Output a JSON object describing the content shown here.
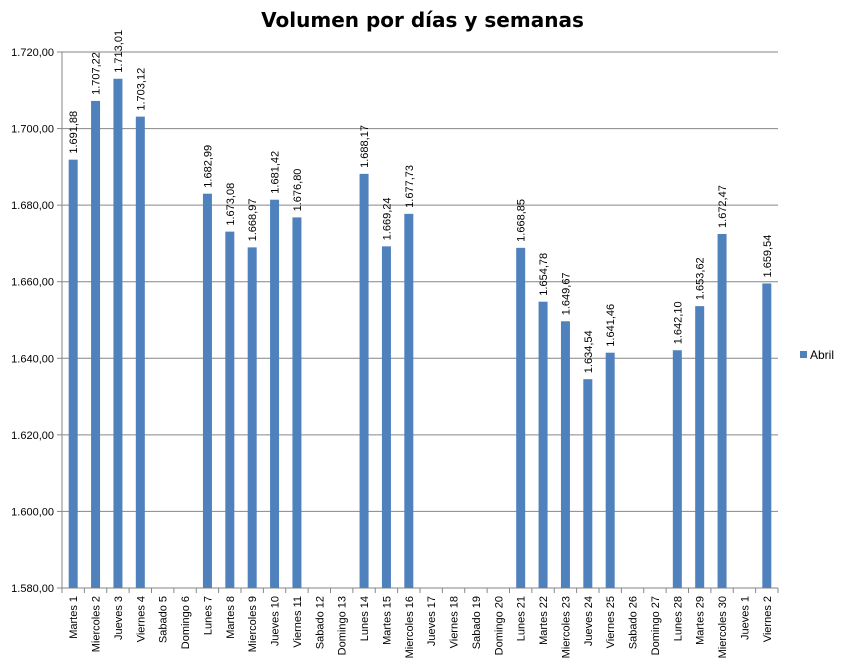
{
  "chart_data": {
    "type": "bar",
    "title": "Volumen por días y semanas",
    "xlabel": "",
    "ylabel": "",
    "ylim": [
      1580,
      1720
    ],
    "y_tick_step": 20,
    "y_tick_labels": [
      "1.580,00",
      "1.600,00",
      "1.620,00",
      "1.640,00",
      "1.660,00",
      "1.680,00",
      "1.700,00",
      "1.720,00"
    ],
    "grid": true,
    "legend_position": "right",
    "categories": [
      "Martes 1",
      "Miercoles 2",
      "Jueves 3",
      "Viernes 4",
      "Sabado 5",
      "Domingo 6",
      "Lunes 7",
      "Martes 8",
      "Miercoles 9",
      "Jueves 10",
      "Viernes 11",
      "Sabado 12",
      "Domingo 13",
      "Lunes 14",
      "Martes 15",
      "Miercoles 16",
      "Jueves 17",
      "Viernes 18",
      "Sabado 19",
      "Domingo 20",
      "Lunes 21",
      "Martes 22",
      "Miercoles 23",
      "Jueves 24",
      "Viernes 25",
      "Sabado 26",
      "Domingo 27",
      "Lunes 28",
      "Martes 29",
      "Miercoles 30",
      "Jueves 1",
      "Viernes 2"
    ],
    "series": [
      {
        "name": "Abril",
        "color": "#4f81bd",
        "values": [
          1691.88,
          1707.22,
          1713.01,
          1703.12,
          null,
          null,
          1682.99,
          1673.08,
          1668.97,
          1681.42,
          1676.8,
          null,
          null,
          1688.17,
          1669.24,
          1677.73,
          null,
          null,
          null,
          null,
          1668.85,
          1654.78,
          1649.67,
          1634.54,
          1641.46,
          null,
          null,
          1642.1,
          1653.62,
          1672.47,
          null,
          1659.54
        ],
        "value_labels": [
          "1.691,88",
          "1.707,22",
          "1.713,01",
          "1.703,12",
          null,
          null,
          "1.682,99",
          "1.673,08",
          "1.668,97",
          "1.681,42",
          "1.676,80",
          null,
          null,
          "1.688,17",
          "1.669,24",
          "1.677,73",
          null,
          null,
          null,
          null,
          "1.668,85",
          "1.654,78",
          "1.649,67",
          "1.634,54",
          "1.641,46",
          null,
          null,
          "1.642,10",
          "1.653,62",
          "1.672,47",
          null,
          "1.659,54"
        ]
      }
    ]
  }
}
